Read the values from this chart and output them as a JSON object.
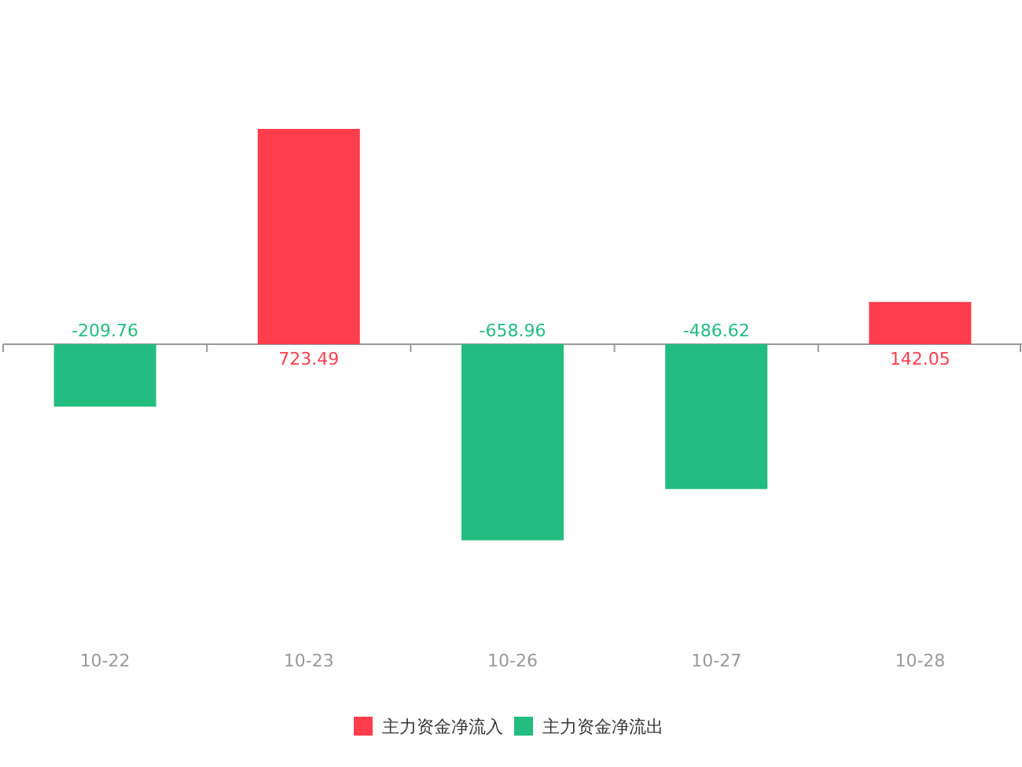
{
  "chart_data": {
    "type": "bar",
    "categories": [
      "10-22",
      "10-23",
      "10-26",
      "10-27",
      "10-28"
    ],
    "series": [
      {
        "name": "主力资金净流入",
        "color": "#ff3d4d",
        "values": [
          null,
          723.49,
          null,
          null,
          142.05
        ]
      },
      {
        "name": "主力资金净流出",
        "color": "#22bd7f",
        "values": [
          -209.76,
          null,
          -658.96,
          -486.62,
          null
        ]
      }
    ],
    "stacked": true,
    "data_labels": true,
    "legend": "bottom"
  }
}
